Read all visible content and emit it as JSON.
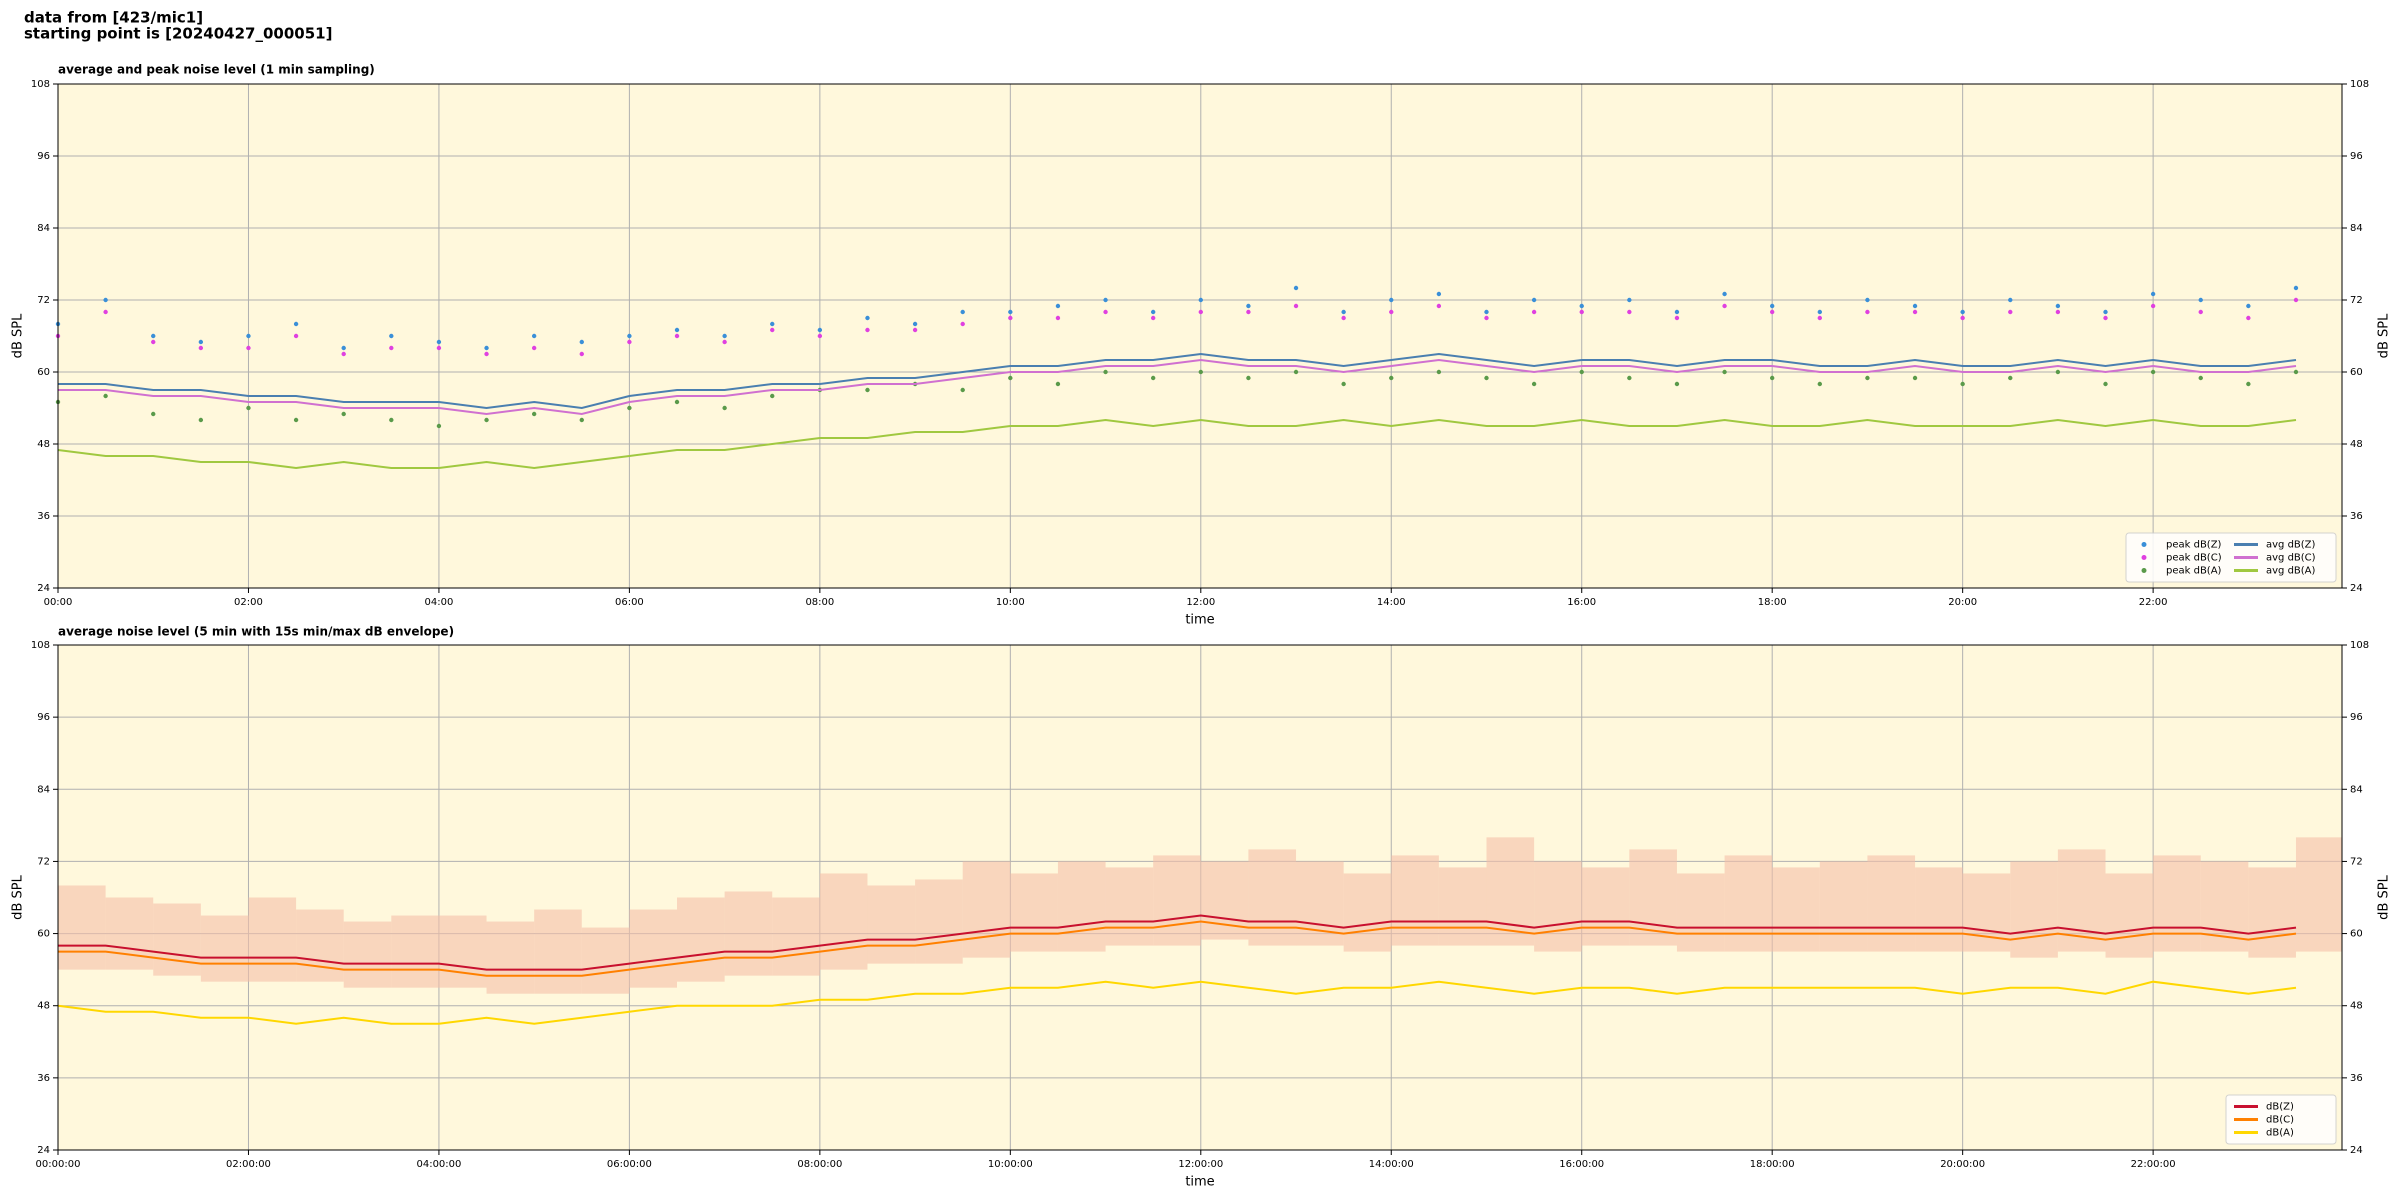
{
  "header": {
    "source": "data from [423/mic1]",
    "start": "starting point is [20240427_000051]"
  },
  "chart_data": [
    {
      "type": "line",
      "title": "average and peak noise level (1 min sampling)",
      "xlabel": "time",
      "ylabel": "dB SPL",
      "x": [
        "00:00",
        "00:30",
        "01:00",
        "01:30",
        "02:00",
        "02:30",
        "03:00",
        "03:30",
        "04:00",
        "04:30",
        "05:00",
        "05:30",
        "06:00",
        "06:30",
        "07:00",
        "07:30",
        "08:00",
        "08:30",
        "09:00",
        "09:30",
        "10:00",
        "10:30",
        "11:00",
        "11:30",
        "12:00",
        "12:30",
        "13:00",
        "13:30",
        "14:00",
        "14:30",
        "15:00",
        "15:30",
        "16:00",
        "16:30",
        "17:00",
        "17:30",
        "18:00",
        "18:30",
        "19:00",
        "19:30",
        "20:00",
        "20:30",
        "21:00",
        "21:30",
        "22:00",
        "22:30",
        "23:00",
        "23:30"
      ],
      "xlim": [
        "00:00",
        "23:59"
      ],
      "xticks": [
        "00:00",
        "02:00",
        "04:00",
        "06:00",
        "08:00",
        "10:00",
        "12:00",
        "14:00",
        "16:00",
        "18:00",
        "20:00",
        "22:00"
      ],
      "ylim": [
        24,
        108
      ],
      "yticks": [
        24,
        36,
        48,
        60,
        72,
        84,
        96,
        108
      ],
      "grid": true,
      "legend": "lower right",
      "background": "#fff8dc",
      "series": [
        {
          "name": "peak dB(Z)",
          "type": "scatter",
          "color": "#3a8fd8",
          "values": [
            68,
            72,
            66,
            65,
            66,
            68,
            64,
            66,
            65,
            64,
            66,
            65,
            66,
            67,
            66,
            68,
            67,
            69,
            68,
            70,
            70,
            71,
            72,
            70,
            72,
            71,
            74,
            70,
            72,
            73,
            70,
            72,
            71,
            72,
            70,
            73,
            71,
            70,
            72,
            71,
            70,
            72,
            71,
            70,
            73,
            72,
            71,
            74
          ]
        },
        {
          "name": "peak dB(C)",
          "type": "scatter",
          "color": "#e040e0",
          "values": [
            66,
            70,
            65,
            64,
            64,
            66,
            63,
            64,
            64,
            63,
            64,
            63,
            65,
            66,
            65,
            67,
            66,
            67,
            67,
            68,
            69,
            69,
            70,
            69,
            70,
            70,
            71,
            69,
            70,
            71,
            69,
            70,
            70,
            70,
            69,
            71,
            70,
            69,
            70,
            70,
            69,
            70,
            70,
            69,
            71,
            70,
            69,
            72
          ]
        },
        {
          "name": "peak dB(A)",
          "type": "scatter",
          "color": "#5a9a4a",
          "values": [
            55,
            56,
            53,
            52,
            54,
            52,
            53,
            52,
            51,
            52,
            53,
            52,
            54,
            55,
            54,
            56,
            57,
            57,
            58,
            57,
            59,
            58,
            60,
            59,
            60,
            59,
            60,
            58,
            59,
            60,
            59,
            58,
            60,
            59,
            58,
            60,
            59,
            58,
            59,
            59,
            58,
            59,
            60,
            58,
            60,
            59,
            58,
            60
          ]
        },
        {
          "name": "avg dB(Z)",
          "type": "line",
          "color": "#4a7fb0",
          "values": [
            58,
            58,
            57,
            57,
            56,
            56,
            55,
            55,
            55,
            54,
            55,
            54,
            56,
            57,
            57,
            58,
            58,
            59,
            59,
            60,
            61,
            61,
            62,
            62,
            63,
            62,
            62,
            61,
            62,
            63,
            62,
            61,
            62,
            62,
            61,
            62,
            62,
            61,
            61,
            62,
            61,
            61,
            62,
            61,
            62,
            61,
            61,
            62
          ]
        },
        {
          "name": "avg dB(C)",
          "type": "line",
          "color": "#d070d0",
          "values": [
            57,
            57,
            56,
            56,
            55,
            55,
            54,
            54,
            54,
            53,
            54,
            53,
            55,
            56,
            56,
            57,
            57,
            58,
            58,
            59,
            60,
            60,
            61,
            61,
            62,
            61,
            61,
            60,
            61,
            62,
            61,
            60,
            61,
            61,
            60,
            61,
            61,
            60,
            60,
            61,
            60,
            60,
            61,
            60,
            61,
            60,
            60,
            61
          ]
        },
        {
          "name": "avg dB(A)",
          "type": "line",
          "color": "#a0c840",
          "values": [
            47,
            46,
            46,
            45,
            45,
            44,
            45,
            44,
            44,
            45,
            44,
            45,
            46,
            47,
            47,
            48,
            49,
            49,
            50,
            50,
            51,
            51,
            52,
            51,
            52,
            51,
            51,
            52,
            51,
            52,
            51,
            51,
            52,
            51,
            51,
            52,
            51,
            51,
            52,
            51,
            51,
            51,
            52,
            51,
            52,
            51,
            51,
            52
          ]
        }
      ]
    },
    {
      "type": "line",
      "title": "average noise level (5 min with 15s min/max dB envelope)",
      "xlabel": "time",
      "ylabel": "dB SPL",
      "x": [
        "00:00",
        "00:30",
        "01:00",
        "01:30",
        "02:00",
        "02:30",
        "03:00",
        "03:30",
        "04:00",
        "04:30",
        "05:00",
        "05:30",
        "06:00",
        "06:30",
        "07:00",
        "07:30",
        "08:00",
        "08:30",
        "09:00",
        "09:30",
        "10:00",
        "10:30",
        "11:00",
        "11:30",
        "12:00",
        "12:30",
        "13:00",
        "13:30",
        "14:00",
        "14:30",
        "15:00",
        "15:30",
        "16:00",
        "16:30",
        "17:00",
        "17:30",
        "18:00",
        "18:30",
        "19:00",
        "19:30",
        "20:00",
        "20:30",
        "21:00",
        "21:30",
        "22:00",
        "22:30",
        "23:00",
        "23:30"
      ],
      "xlim": [
        "00:00",
        "23:59"
      ],
      "xticks": [
        {
          "value": "00:00",
          "label": "00:00:00"
        },
        {
          "value": "02:00",
          "label": "02:00:00"
        },
        {
          "value": "04:00",
          "label": "04:00:00"
        },
        {
          "value": "06:00",
          "label": "06:00:00"
        },
        {
          "value": "08:00",
          "label": "08:00:00"
        },
        {
          "value": "10:00",
          "label": "10:00:00"
        },
        {
          "value": "12:00",
          "label": "12:00:00"
        },
        {
          "value": "14:00",
          "label": "14:00:00"
        },
        {
          "value": "16:00",
          "label": "16:00:00"
        },
        {
          "value": "18:00",
          "label": "18:00:00"
        },
        {
          "value": "20:00",
          "label": "20:00:00"
        },
        {
          "value": "22:00",
          "label": "22:00:00"
        }
      ],
      "ylim": [
        24,
        108
      ],
      "yticks": [
        24,
        36,
        48,
        60,
        72,
        84,
        96,
        108
      ],
      "grid": true,
      "legend": "lower right",
      "background": "#fff8dc",
      "envelope": {
        "color": "#f5c0a8",
        "low": [
          54,
          54,
          53,
          52,
          52,
          52,
          51,
          51,
          51,
          50,
          50,
          50,
          51,
          52,
          53,
          53,
          54,
          55,
          55,
          56,
          57,
          57,
          58,
          58,
          59,
          58,
          58,
          57,
          58,
          58,
          58,
          57,
          58,
          58,
          57,
          57,
          57,
          57,
          57,
          57,
          57,
          56,
          57,
          56,
          57,
          57,
          56,
          57
        ],
        "high": [
          68,
          66,
          65,
          63,
          66,
          64,
          62,
          63,
          63,
          62,
          64,
          61,
          64,
          66,
          67,
          66,
          70,
          68,
          69,
          72,
          70,
          72,
          71,
          73,
          72,
          74,
          72,
          70,
          73,
          71,
          76,
          72,
          71,
          74,
          70,
          73,
          71,
          72,
          73,
          71,
          70,
          72,
          74,
          70,
          73,
          72,
          71,
          76
        ]
      },
      "series": [
        {
          "name": "dB(Z)",
          "type": "line",
          "color": "#c8102e",
          "values": [
            58,
            58,
            57,
            56,
            56,
            56,
            55,
            55,
            55,
            54,
            54,
            54,
            55,
            56,
            57,
            57,
            58,
            59,
            59,
            60,
            61,
            61,
            62,
            62,
            63,
            62,
            62,
            61,
            62,
            62,
            62,
            61,
            62,
            62,
            61,
            61,
            61,
            61,
            61,
            61,
            61,
            60,
            61,
            60,
            61,
            61,
            60,
            61
          ]
        },
        {
          "name": "dB(C)",
          "type": "line",
          "color": "#ff8000",
          "values": [
            57,
            57,
            56,
            55,
            55,
            55,
            54,
            54,
            54,
            53,
            53,
            53,
            54,
            55,
            56,
            56,
            57,
            58,
            58,
            59,
            60,
            60,
            61,
            61,
            62,
            61,
            61,
            60,
            61,
            61,
            61,
            60,
            61,
            61,
            60,
            60,
            60,
            60,
            60,
            60,
            60,
            59,
            60,
            59,
            60,
            60,
            59,
            60
          ]
        },
        {
          "name": "dB(A)",
          "type": "line",
          "color": "#ffd700",
          "values": [
            48,
            47,
            47,
            46,
            46,
            45,
            46,
            45,
            45,
            46,
            45,
            46,
            47,
            48,
            48,
            48,
            49,
            49,
            50,
            50,
            51,
            51,
            52,
            51,
            52,
            51,
            50,
            51,
            51,
            52,
            51,
            50,
            51,
            51,
            50,
            51,
            51,
            51,
            51,
            51,
            50,
            51,
            51,
            50,
            52,
            51,
            50,
            51
          ]
        }
      ]
    }
  ]
}
